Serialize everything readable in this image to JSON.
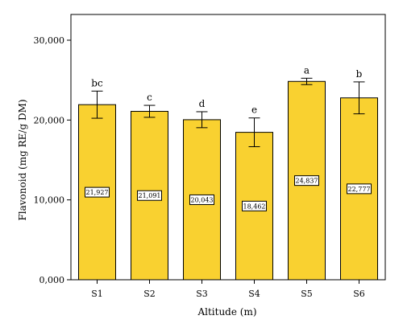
{
  "chart_data": {
    "type": "bar",
    "title": "",
    "xlabel": "Altitude (m)",
    "ylabel": "Flavonoid (mg RE/g DM)",
    "ylim": [
      0,
      30000
    ],
    "yticks": [
      0,
      10000,
      20000,
      30000
    ],
    "ytick_labels": [
      "0,000",
      "10,000",
      "20,000",
      "30,000"
    ],
    "categories": [
      "S1",
      "S2",
      "S3",
      "S4",
      "S5",
      "S6"
    ],
    "values": [
      21927,
      21091,
      20043,
      18462,
      24837,
      22777
    ],
    "value_labels": [
      "21,927",
      "21,091",
      "20,043",
      "18,462",
      "24,837",
      "22,777"
    ],
    "errors": [
      1700,
      750,
      1000,
      1800,
      400,
      2000
    ],
    "significance": [
      "bc",
      "c",
      "d",
      "e",
      "a",
      "b"
    ],
    "grid": false,
    "legend": "none",
    "colors": {
      "bar_fill": "#F9D130",
      "bar_stroke": "#000000",
      "axis": "#000000"
    }
  }
}
